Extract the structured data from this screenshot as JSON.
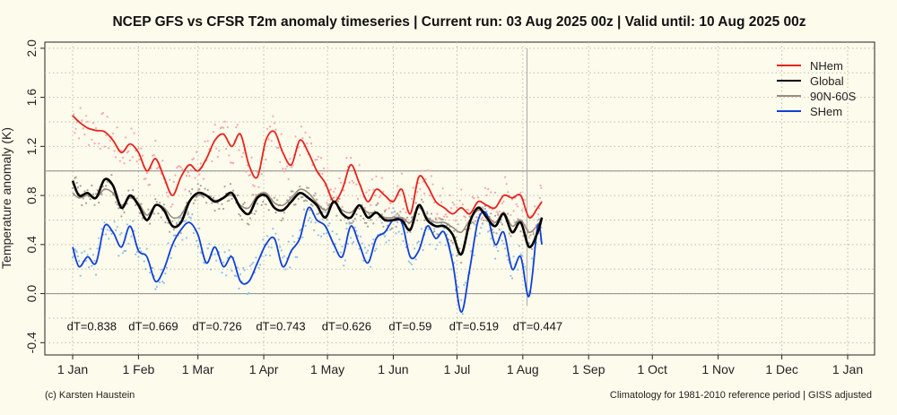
{
  "chart_data": {
    "type": "line",
    "title": "NCEP GFS vs CFSR T2m anomaly timeseries | Current run: 03 Aug 2025 00z | Valid until: 10 Aug 2025 00z",
    "ylabel": "Temperature anomaly (K)",
    "xlabel": "",
    "xlim": [
      "2025-01-01",
      "2026-01-01"
    ],
    "ylim": [
      -0.5,
      2.05
    ],
    "yticks": [
      "-0.4",
      "0.0",
      "0.4",
      "0.8",
      "1.2",
      "1.6",
      "2.0"
    ],
    "xticks": [
      {
        "label": "1 Jan",
        "date": "2025-01-01"
      },
      {
        "label": "1 Feb",
        "date": "2025-02-01"
      },
      {
        "label": "1 Mar",
        "date": "2025-03-01"
      },
      {
        "label": "1 Apr",
        "date": "2025-04-01"
      },
      {
        "label": "1 May",
        "date": "2025-05-01"
      },
      {
        "label": "1 Jun",
        "date": "2025-06-01"
      },
      {
        "label": "1 Jul",
        "date": "2025-07-01"
      },
      {
        "label": "1 Aug",
        "date": "2025-08-01"
      },
      {
        "label": "1 Sep",
        "date": "2025-09-01"
      },
      {
        "label": "1 Oct",
        "date": "2025-10-01"
      },
      {
        "label": "1 Nov",
        "date": "2025-11-01"
      },
      {
        "label": "1 Dec",
        "date": "2025-12-01"
      },
      {
        "label": "1 Jan",
        "date": "2026-01-01"
      }
    ],
    "grid": true,
    "legend_position": "top-right",
    "reference_lines": [
      0.0,
      1.0
    ],
    "current_run_marker": "2025-08-03",
    "series": [
      {
        "name": "NHem",
        "color": "#e8231c",
        "x": [
          "2025-01-01",
          "2025-01-04",
          "2025-01-08",
          "2025-01-12",
          "2025-01-16",
          "2025-01-20",
          "2025-01-24",
          "2025-01-28",
          "2025-02-01",
          "2025-02-05",
          "2025-02-09",
          "2025-02-13",
          "2025-02-17",
          "2025-02-21",
          "2025-02-25",
          "2025-03-01",
          "2025-03-05",
          "2025-03-09",
          "2025-03-13",
          "2025-03-17",
          "2025-03-21",
          "2025-03-25",
          "2025-03-29",
          "2025-04-02",
          "2025-04-06",
          "2025-04-10",
          "2025-04-14",
          "2025-04-18",
          "2025-04-22",
          "2025-04-26",
          "2025-04-30",
          "2025-05-04",
          "2025-05-08",
          "2025-05-12",
          "2025-05-16",
          "2025-05-20",
          "2025-05-24",
          "2025-05-28",
          "2025-06-01",
          "2025-06-05",
          "2025-06-09",
          "2025-06-13",
          "2025-06-17",
          "2025-06-21",
          "2025-06-25",
          "2025-06-29",
          "2025-07-03",
          "2025-07-07",
          "2025-07-11",
          "2025-07-15",
          "2025-07-19",
          "2025-07-23",
          "2025-07-27",
          "2025-07-31",
          "2025-08-04",
          "2025-08-08",
          "2025-08-10"
        ],
        "values": [
          1.45,
          1.4,
          1.35,
          1.33,
          1.32,
          1.25,
          1.15,
          1.22,
          1.15,
          1.0,
          1.1,
          0.95,
          0.8,
          0.95,
          1.05,
          1.0,
          1.1,
          1.25,
          1.3,
          1.2,
          1.3,
          1.05,
          0.95,
          1.25,
          1.32,
          1.15,
          1.05,
          1.25,
          1.15,
          1.0,
          0.9,
          0.75,
          0.85,
          1.05,
          0.9,
          0.75,
          0.85,
          0.8,
          0.75,
          0.85,
          0.65,
          0.95,
          0.88,
          0.75,
          0.7,
          0.65,
          0.7,
          0.65,
          0.75,
          0.72,
          0.7,
          0.8,
          0.78,
          0.8,
          0.62,
          0.7,
          0.75
        ]
      },
      {
        "name": "Global",
        "color": "#000000",
        "x": [
          "2025-01-01",
          "2025-01-04",
          "2025-01-08",
          "2025-01-12",
          "2025-01-16",
          "2025-01-20",
          "2025-01-24",
          "2025-01-28",
          "2025-02-01",
          "2025-02-05",
          "2025-02-09",
          "2025-02-13",
          "2025-02-17",
          "2025-02-21",
          "2025-02-25",
          "2025-03-01",
          "2025-03-05",
          "2025-03-09",
          "2025-03-13",
          "2025-03-17",
          "2025-03-21",
          "2025-03-25",
          "2025-03-29",
          "2025-04-02",
          "2025-04-06",
          "2025-04-10",
          "2025-04-14",
          "2025-04-18",
          "2025-04-22",
          "2025-04-26",
          "2025-04-30",
          "2025-05-04",
          "2025-05-08",
          "2025-05-12",
          "2025-05-16",
          "2025-05-20",
          "2025-05-24",
          "2025-05-28",
          "2025-06-01",
          "2025-06-05",
          "2025-06-09",
          "2025-06-13",
          "2025-06-17",
          "2025-06-21",
          "2025-06-25",
          "2025-06-29",
          "2025-07-03",
          "2025-07-07",
          "2025-07-11",
          "2025-07-15",
          "2025-07-19",
          "2025-07-23",
          "2025-07-27",
          "2025-07-31",
          "2025-08-04",
          "2025-08-08",
          "2025-08-10"
        ],
        "values": [
          0.92,
          0.8,
          0.82,
          0.78,
          0.93,
          0.88,
          0.7,
          0.8,
          0.72,
          0.6,
          0.72,
          0.68,
          0.55,
          0.58,
          0.75,
          0.82,
          0.8,
          0.75,
          0.78,
          0.82,
          0.7,
          0.65,
          0.78,
          0.8,
          0.7,
          0.68,
          0.75,
          0.82,
          0.78,
          0.72,
          0.62,
          0.75,
          0.65,
          0.62,
          0.72,
          0.62,
          0.66,
          0.6,
          0.6,
          0.6,
          0.52,
          0.72,
          0.6,
          0.55,
          0.55,
          0.48,
          0.32,
          0.58,
          0.7,
          0.62,
          0.55,
          0.65,
          0.5,
          0.58,
          0.38,
          0.5,
          0.62
        ]
      },
      {
        "name": "90N-60S",
        "color": "#9a8a80",
        "x": [
          "2025-01-01",
          "2025-01-04",
          "2025-01-08",
          "2025-01-12",
          "2025-01-16",
          "2025-01-20",
          "2025-01-24",
          "2025-01-28",
          "2025-02-01",
          "2025-02-05",
          "2025-02-09",
          "2025-02-13",
          "2025-02-17",
          "2025-02-21",
          "2025-02-25",
          "2025-03-01",
          "2025-03-05",
          "2025-03-09",
          "2025-03-13",
          "2025-03-17",
          "2025-03-21",
          "2025-03-25",
          "2025-03-29",
          "2025-04-02",
          "2025-04-06",
          "2025-04-10",
          "2025-04-14",
          "2025-04-18",
          "2025-04-22",
          "2025-04-26",
          "2025-04-30",
          "2025-05-04",
          "2025-05-08",
          "2025-05-12",
          "2025-05-16",
          "2025-05-20",
          "2025-05-24",
          "2025-05-28",
          "2025-06-01",
          "2025-06-05",
          "2025-06-09",
          "2025-06-13",
          "2025-06-17",
          "2025-06-21",
          "2025-06-25",
          "2025-06-29",
          "2025-07-03",
          "2025-07-07",
          "2025-07-11",
          "2025-07-15",
          "2025-07-19",
          "2025-07-23",
          "2025-07-27",
          "2025-07-31",
          "2025-08-04",
          "2025-08-08",
          "2025-08-10"
        ],
        "values": [
          0.82,
          0.78,
          0.8,
          0.78,
          0.85,
          0.82,
          0.72,
          0.78,
          0.74,
          0.64,
          0.72,
          0.7,
          0.62,
          0.64,
          0.76,
          0.8,
          0.8,
          0.76,
          0.78,
          0.8,
          0.72,
          0.7,
          0.8,
          0.82,
          0.74,
          0.72,
          0.78,
          0.85,
          0.82,
          0.74,
          0.68,
          0.74,
          0.68,
          0.66,
          0.72,
          0.66,
          0.66,
          0.62,
          0.62,
          0.62,
          0.58,
          0.7,
          0.62,
          0.58,
          0.58,
          0.54,
          0.5,
          0.6,
          0.68,
          0.64,
          0.58,
          0.66,
          0.55,
          0.6,
          0.5,
          0.56,
          0.62
        ]
      },
      {
        "name": "SHem",
        "color": "#1040d8",
        "x": [
          "2025-01-01",
          "2025-01-04",
          "2025-01-08",
          "2025-01-12",
          "2025-01-16",
          "2025-01-20",
          "2025-01-24",
          "2025-01-28",
          "2025-02-01",
          "2025-02-05",
          "2025-02-09",
          "2025-02-13",
          "2025-02-17",
          "2025-02-21",
          "2025-02-25",
          "2025-03-01",
          "2025-03-05",
          "2025-03-09",
          "2025-03-13",
          "2025-03-17",
          "2025-03-21",
          "2025-03-25",
          "2025-03-29",
          "2025-04-02",
          "2025-04-06",
          "2025-04-10",
          "2025-04-14",
          "2025-04-18",
          "2025-04-22",
          "2025-04-26",
          "2025-04-30",
          "2025-05-04",
          "2025-05-08",
          "2025-05-12",
          "2025-05-16",
          "2025-05-20",
          "2025-05-24",
          "2025-05-28",
          "2025-06-01",
          "2025-06-05",
          "2025-06-09",
          "2025-06-13",
          "2025-06-17",
          "2025-06-21",
          "2025-06-25",
          "2025-06-29",
          "2025-07-03",
          "2025-07-07",
          "2025-07-11",
          "2025-07-15",
          "2025-07-19",
          "2025-07-23",
          "2025-07-27",
          "2025-07-31",
          "2025-08-04",
          "2025-08-08",
          "2025-08-10"
        ],
        "values": [
          0.38,
          0.22,
          0.3,
          0.25,
          0.55,
          0.5,
          0.38,
          0.55,
          0.35,
          0.3,
          0.1,
          0.2,
          0.4,
          0.52,
          0.58,
          0.48,
          0.25,
          0.38,
          0.22,
          0.3,
          0.1,
          0.1,
          0.25,
          0.4,
          0.45,
          0.22,
          0.35,
          0.45,
          0.7,
          0.6,
          0.55,
          0.4,
          0.3,
          0.55,
          0.4,
          0.25,
          0.45,
          0.5,
          0.6,
          0.58,
          0.3,
          0.35,
          0.55,
          0.45,
          0.5,
          0.25,
          -0.15,
          0.2,
          0.6,
          0.65,
          0.4,
          0.5,
          0.2,
          0.3,
          -0.02,
          0.55,
          0.4
        ]
      }
    ],
    "annotations": [
      "dT=0.838",
      "dT=0.669",
      "dT=0.726",
      "dT=0.743",
      "dT=0.626",
      "dT=0.59",
      "dT=0.519",
      "dT=0.447"
    ],
    "annotation_y": -0.3,
    "annotation_dates": [
      "2025-01-10",
      "2025-02-08",
      "2025-03-10",
      "2025-04-09",
      "2025-05-10",
      "2025-06-09",
      "2025-07-09",
      "2025-08-08"
    ]
  },
  "footer": {
    "left": "(c) Karsten Haustein",
    "right": "Climatology for 1981-2010 reference period | GISS adjusted"
  },
  "colors": {
    "background": "#fdfbec",
    "grid": "#bdbdad",
    "nhem_points": "#f6a6ac",
    "global_points": "#a9a396",
    "shem_points": "#90c0ea"
  }
}
